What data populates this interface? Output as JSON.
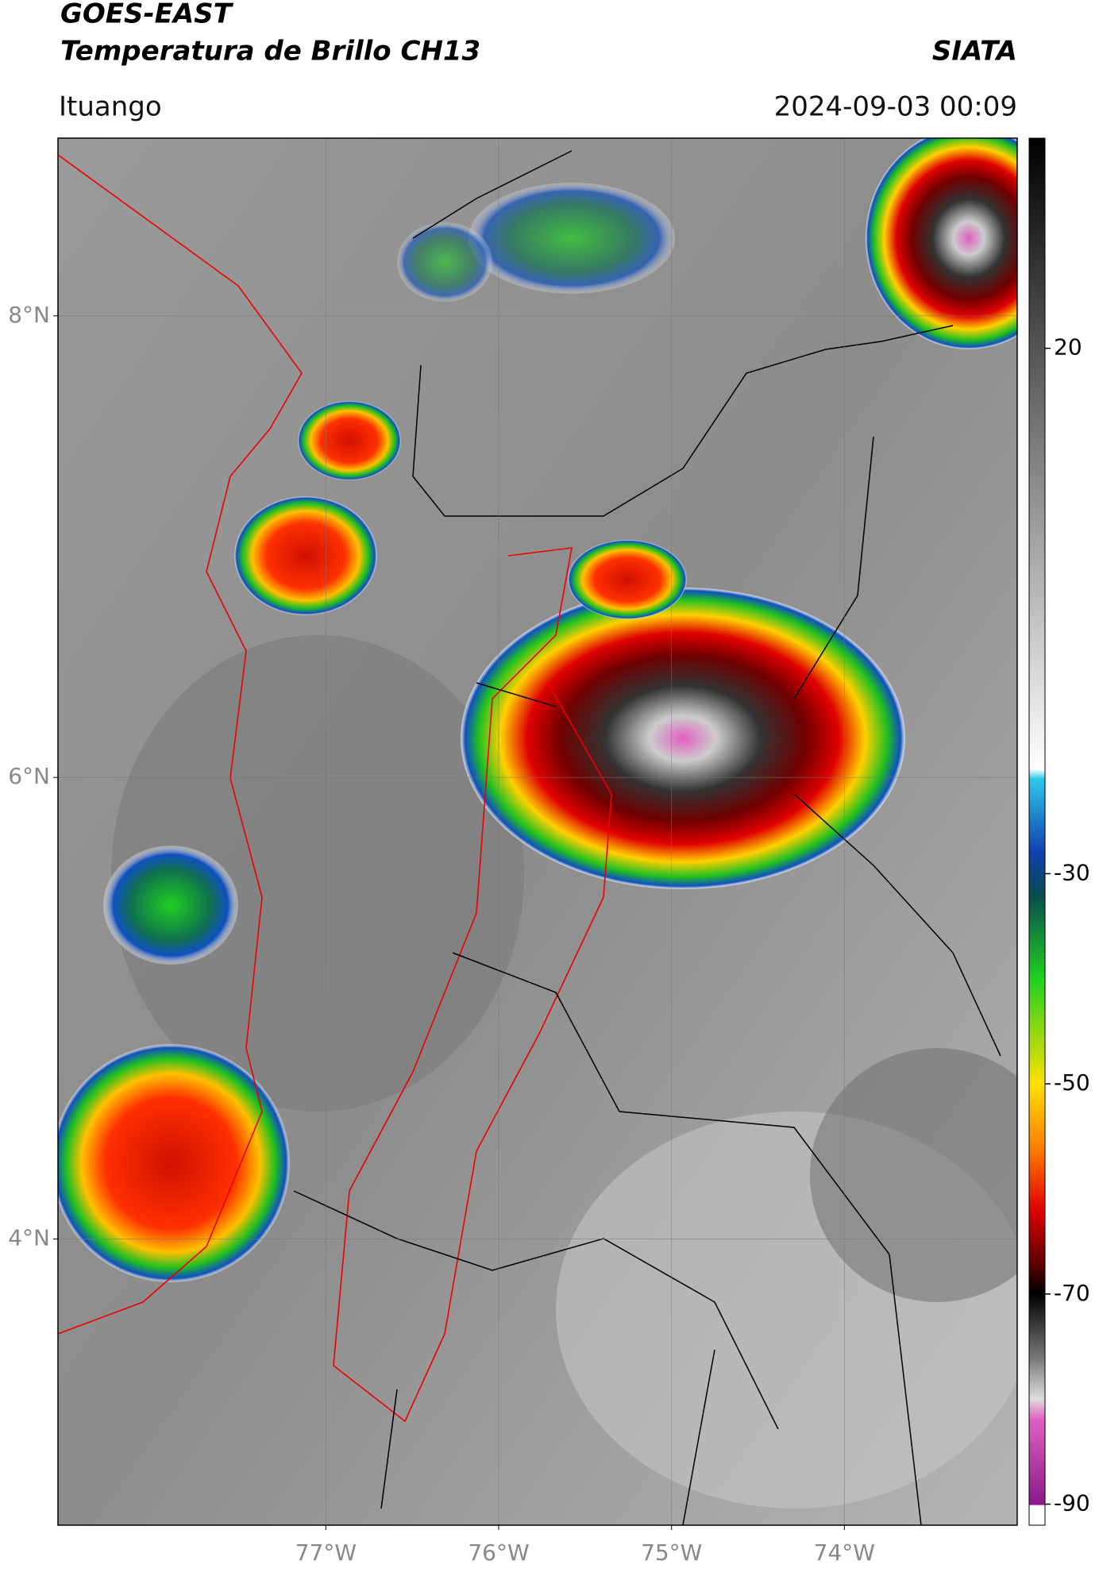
{
  "chart_data": {
    "type": "map",
    "title": "GOES-EAST",
    "subtitle": "Temperatura de Brillo CH13",
    "source": "SIATA",
    "location": "Ituango",
    "datetime": "2024-09-03 00:09",
    "xlim": [
      -78.55,
      -73.0
    ],
    "xticks": [
      {
        "value": -77,
        "label": "77°W"
      },
      {
        "value": -76,
        "label": "76°W"
      },
      {
        "value": -75,
        "label": "75°W"
      },
      {
        "value": -74,
        "label": "74°W"
      }
    ],
    "ylim": [
      2.76,
      8.77
    ],
    "yticks": [
      {
        "value": 4,
        "label": "4°N"
      },
      {
        "value": 6,
        "label": "6°N"
      },
      {
        "value": 8,
        "label": "8°N"
      }
    ],
    "grid": true,
    "colorbar": {
      "lim": [
        -92,
        40
      ],
      "ticks": [
        20,
        -30,
        -50,
        -70,
        -90
      ]
    }
  }
}
